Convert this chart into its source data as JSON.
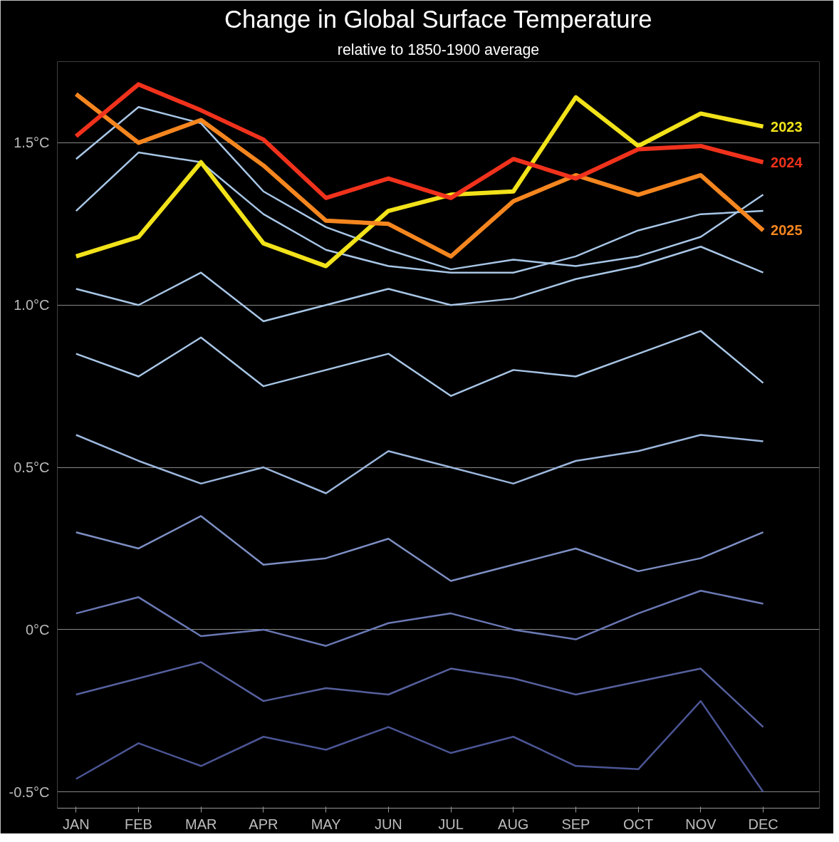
{
  "chart_data": {
    "type": "line",
    "title": "Change in Global Surface Temperature",
    "subtitle": "relative to 1850-1900 average",
    "categories": [
      "JAN",
      "FEB",
      "MAR",
      "APR",
      "MAY",
      "JUN",
      "JUL",
      "AUG",
      "SEP",
      "OCT",
      "NOV",
      "DEC"
    ],
    "ylim": [
      -0.55,
      1.75
    ],
    "yticks": [
      {
        "value": -0.5,
        "label": "-0.5°C"
      },
      {
        "value": 0,
        "label": "0°C"
      },
      {
        "value": 0.5,
        "label": "0.5°C"
      },
      {
        "value": 1.0,
        "label": "1.0°C"
      },
      {
        "value": 1.5,
        "label": "1.5°C"
      }
    ],
    "grid": "y",
    "line_style": "solid",
    "marker": "none",
    "series": [
      {
        "color": "#4b5594",
        "values": [
          -0.46,
          -0.35,
          -0.42,
          -0.33,
          -0.37,
          -0.3,
          -0.38,
          -0.33,
          -0.42,
          -0.43,
          -0.22,
          -0.5
        ]
      },
      {
        "color": "#56609e",
        "values": [
          -0.2,
          -0.15,
          -0.1,
          -0.22,
          -0.18,
          -0.2,
          -0.12,
          -0.15,
          -0.2,
          -0.16,
          -0.12,
          -0.3
        ]
      },
      {
        "color": "#6a78b4",
        "values": [
          0.05,
          0.1,
          -0.02,
          0.0,
          -0.05,
          0.02,
          0.05,
          0.0,
          -0.03,
          0.05,
          0.12,
          0.08
        ]
      },
      {
        "color": "#7d8fc4",
        "values": [
          0.3,
          0.25,
          0.35,
          0.2,
          0.22,
          0.28,
          0.15,
          0.2,
          0.25,
          0.18,
          0.22,
          0.3
        ]
      },
      {
        "color": "#9bb6dc",
        "values": [
          0.6,
          0.52,
          0.45,
          0.5,
          0.42,
          0.55,
          0.5,
          0.45,
          0.52,
          0.55,
          0.6,
          0.58
        ]
      },
      {
        "color": "#a8c6e6",
        "values": [
          0.85,
          0.78,
          0.9,
          0.75,
          0.8,
          0.85,
          0.72,
          0.8,
          0.78,
          0.85,
          0.92,
          0.76
        ]
      },
      {
        "color": "#a8c6e6",
        "values": [
          1.05,
          1.0,
          1.1,
          0.95,
          1.0,
          1.05,
          1.0,
          1.02,
          1.08,
          1.12,
          1.18,
          1.1
        ]
      },
      {
        "color": "#a8c6e6",
        "values": [
          1.29,
          1.47,
          1.44,
          1.28,
          1.17,
          1.12,
          1.1,
          1.1,
          1.15,
          1.23,
          1.28,
          1.29
        ]
      },
      {
        "color": "#a8c6e6",
        "values": [
          1.45,
          1.61,
          1.56,
          1.35,
          1.24,
          1.17,
          1.11,
          1.14,
          1.12,
          1.15,
          1.21,
          1.34
        ]
      },
      {
        "name": "2023",
        "color": "#f2e21a",
        "values": [
          1.15,
          1.21,
          1.44,
          1.19,
          1.12,
          1.29,
          1.34,
          1.35,
          1.64,
          1.49,
          1.59,
          1.55
        ]
      },
      {
        "name": "2025",
        "color": "#f5861f",
        "values": [
          1.65,
          1.5,
          1.57,
          1.43,
          1.26,
          1.25,
          1.15,
          1.32,
          1.4,
          1.34,
          1.4,
          1.23
        ]
      },
      {
        "name": "2024",
        "color": "#f0321c",
        "values": [
          1.52,
          1.68,
          1.6,
          1.51,
          1.33,
          1.39,
          1.33,
          1.45,
          1.39,
          1.48,
          1.49,
          1.44
        ]
      }
    ]
  }
}
